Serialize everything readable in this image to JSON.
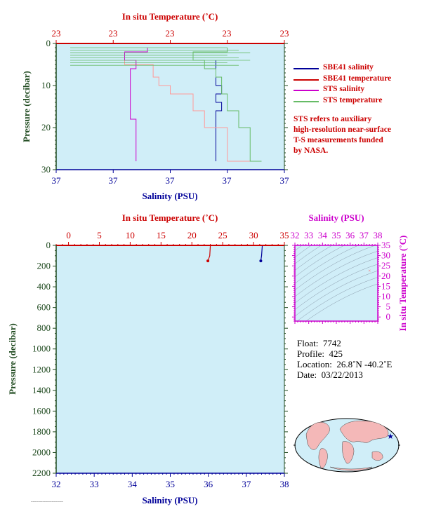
{
  "colors": {
    "plot_bg": "#d0eef8",
    "temperature": "#cc0000",
    "salinity": "#000099",
    "pressure_axis": "#1f4a1f",
    "sts_salinity": "#cc00cc",
    "sts_temperature": "#66bb66",
    "sbe_temperature": "#ff9999",
    "ts_axis": "#cc00cc"
  },
  "top_plot": {
    "top_axis_title": "In situ Temperature (˚C)",
    "top_ticks": [
      "23",
      "23",
      "23",
      "23",
      "23"
    ],
    "bottom_axis_title": "Salinity (PSU)",
    "bottom_ticks": [
      "37",
      "37",
      "37",
      "37",
      "37"
    ],
    "left_axis_title": "Pressure (decibar)",
    "left_ticks": [
      "0",
      "10",
      "20",
      "30"
    ]
  },
  "legend": {
    "items": [
      {
        "label": "SBE41 salinity",
        "color": "#000099"
      },
      {
        "label": "SBE41 temperature",
        "color": "#cc0000"
      },
      {
        "label": "STS salinity",
        "color": "#cc00cc"
      },
      {
        "label": "STS temperature",
        "color": "#66bb66"
      }
    ]
  },
  "note": {
    "lines": [
      "STS refers to auxiliary",
      "high-resolution near-surface",
      "T-S measurements funded",
      "by NASA."
    ]
  },
  "main_plot": {
    "top_axis_title": "In situ Temperature (˚C)",
    "top_ticks": [
      "0",
      "5",
      "10",
      "15",
      "20",
      "25",
      "30",
      "35"
    ],
    "bottom_axis_title": "Salinity (PSU)",
    "bottom_ticks": [
      "32",
      "33",
      "34",
      "35",
      "36",
      "37",
      "38"
    ],
    "left_axis_title": "Pressure (decibar)",
    "left_ticks": [
      "0",
      "200",
      "400",
      "600",
      "800",
      "1000",
      "1200",
      "1400",
      "1600",
      "1800",
      "2000",
      "2200"
    ]
  },
  "ts_plot": {
    "top_axis_title": "Salinity (PSU)",
    "top_ticks": [
      "32",
      "33",
      "34",
      "35",
      "36",
      "37",
      "38"
    ],
    "right_axis_title": "In situ Temperature (˚C)",
    "right_ticks": [
      "0",
      "5",
      "10",
      "15",
      "20",
      "25",
      "30",
      "35"
    ]
  },
  "float_info": {
    "float_label": "Float:",
    "float_value": "7742",
    "profile_label": "Profile:",
    "profile_value": "425",
    "location_label": "Location:",
    "location_value": "26.8˚N  -40.2˚E",
    "date_label": "Date:",
    "date_value": "03/22/2013"
  },
  "chart_data": [
    {
      "type": "line",
      "panel": "near-surface",
      "x_temperature_range": [
        22.9,
        23.1
      ],
      "x_salinity_range": [
        36.9,
        37.1
      ],
      "ylim": [
        30,
        0
      ],
      "series": [
        {
          "name": "SBE41 salinity",
          "pressure": [
            4,
            6,
            8,
            10,
            12,
            14,
            16,
            18,
            20,
            22,
            24,
            26,
            28
          ],
          "salinity": [
            37.04,
            37.04,
            37.04,
            37.045,
            37.04,
            37.045,
            37.04,
            37.04,
            37.04,
            37.04,
            37.04,
            37.04,
            37.04
          ]
        },
        {
          "name": "SBE41 temperature",
          "pressure": [
            3,
            5,
            8,
            10,
            12,
            14,
            16,
            18,
            20,
            22,
            24,
            26,
            28
          ],
          "temperature": [
            22.96,
            22.985,
            22.99,
            23.0,
            23.02,
            23.02,
            23.03,
            23.03,
            23.05,
            23.05,
            23.05,
            23.05,
            23.07
          ]
        },
        {
          "name": "STS salinity",
          "pressure": [
            1,
            2,
            4,
            6,
            8,
            10,
            12,
            14,
            16,
            18,
            20,
            22,
            24,
            26,
            28
          ],
          "salinity": [
            36.98,
            36.96,
            36.97,
            36.965,
            36.965,
            36.965,
            36.965,
            36.965,
            36.965,
            36.97,
            36.97,
            36.97,
            36.97,
            36.97,
            36.97
          ]
        },
        {
          "name": "STS temperature",
          "pressure": [
            1,
            2,
            4,
            6,
            8,
            10,
            12,
            14,
            16,
            18,
            20,
            22,
            24,
            26,
            28
          ],
          "temperature": [
            23.05,
            23.02,
            23.03,
            23.04,
            23.045,
            23.045,
            23.05,
            23.05,
            23.06,
            23.06,
            23.07,
            23.07,
            23.07,
            23.07,
            23.08
          ]
        }
      ]
    },
    {
      "type": "line",
      "panel": "full-profile",
      "xlim_temperature": [
        -2,
        35
      ],
      "xlim_salinity": [
        32,
        38
      ],
      "ylim": [
        2200,
        0
      ],
      "series": [
        {
          "name": "temperature",
          "pressure": [
            0,
            100,
            150
          ],
          "temperature": [
            23.0,
            22.9,
            22.6
          ]
        },
        {
          "name": "salinity",
          "pressure": [
            0,
            100,
            150
          ],
          "salinity": [
            37.42,
            37.4,
            37.38
          ]
        }
      ]
    },
    {
      "type": "scatter",
      "panel": "T-S diagram",
      "xlim": [
        32,
        38
      ],
      "ylim": [
        -2,
        35
      ],
      "points": [
        {
          "salinity": 37.4,
          "temperature": 22.9
        }
      ]
    }
  ]
}
